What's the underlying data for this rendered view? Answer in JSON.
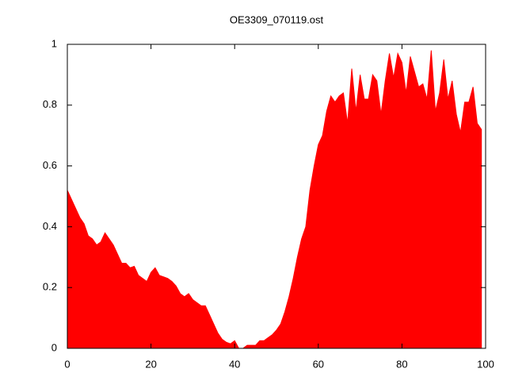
{
  "chart_data": {
    "type": "area",
    "title": "OE3309_070119.ost",
    "color": "#ff0000",
    "x": [
      0,
      1,
      2,
      3,
      4,
      5,
      6,
      7,
      8,
      9,
      10,
      11,
      12,
      13,
      14,
      15,
      16,
      17,
      18,
      19,
      20,
      21,
      22,
      23,
      24,
      25,
      26,
      27,
      28,
      29,
      30,
      31,
      32,
      33,
      34,
      35,
      36,
      37,
      38,
      39,
      40,
      41,
      42,
      43,
      44,
      45,
      46,
      47,
      48,
      49,
      50,
      51,
      52,
      53,
      54,
      55,
      56,
      57,
      58,
      59,
      60,
      61,
      62,
      63,
      64,
      65,
      66,
      67,
      68,
      69,
      70,
      71,
      72,
      73,
      74,
      75,
      76,
      77,
      78,
      79,
      80,
      81,
      82,
      83,
      84,
      85,
      86,
      87,
      88,
      89,
      90,
      91,
      92,
      93,
      94,
      95,
      96,
      97,
      98,
      99
    ],
    "values": [
      0.52,
      0.49,
      0.46,
      0.43,
      0.41,
      0.37,
      0.36,
      0.34,
      0.35,
      0.38,
      0.36,
      0.34,
      0.31,
      0.28,
      0.28,
      0.265,
      0.27,
      0.24,
      0.23,
      0.22,
      0.25,
      0.265,
      0.24,
      0.235,
      0.23,
      0.22,
      0.205,
      0.18,
      0.17,
      0.18,
      0.16,
      0.15,
      0.14,
      0.14,
      0.11,
      0.08,
      0.05,
      0.03,
      0.02,
      0.015,
      0.025,
      0.0,
      0.0,
      0.01,
      0.01,
      0.01,
      0.025,
      0.025,
      0.035,
      0.045,
      0.06,
      0.08,
      0.12,
      0.17,
      0.23,
      0.3,
      0.36,
      0.4,
      0.52,
      0.6,
      0.67,
      0.7,
      0.78,
      0.83,
      0.81,
      0.83,
      0.84,
      0.74,
      0.92,
      0.78,
      0.9,
      0.82,
      0.82,
      0.9,
      0.88,
      0.77,
      0.88,
      0.97,
      0.89,
      0.97,
      0.94,
      0.84,
      0.96,
      0.91,
      0.86,
      0.87,
      0.82,
      0.98,
      0.78,
      0.84,
      0.95,
      0.82,
      0.88,
      0.77,
      0.71,
      0.81,
      0.81,
      0.86,
      0.74,
      0.72
    ],
    "xlim": [
      0,
      100
    ],
    "xticks": [
      0,
      20,
      40,
      60,
      80,
      100
    ],
    "ylim": [
      0,
      1
    ],
    "yticks": [
      0,
      0.2,
      0.4,
      0.6,
      0.8,
      1
    ]
  }
}
